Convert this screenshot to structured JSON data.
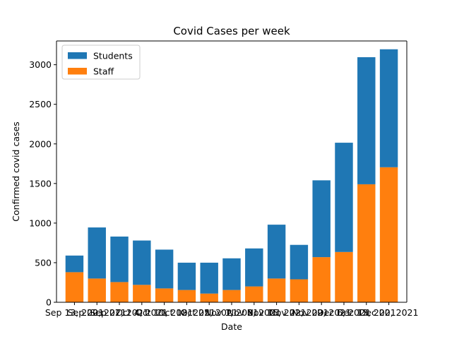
{
  "chart_data": {
    "type": "bar",
    "stacked": true,
    "title": "Covid Cases per week",
    "xlabel": "Date",
    "ylabel": "Confirmed covid cases",
    "ylim": [
      0,
      3300
    ],
    "yticks": [
      0,
      500,
      1000,
      1500,
      2000,
      2500,
      3000
    ],
    "categories": [
      "Sep 13, 2021",
      "Sep 20, 2021",
      "Sep 27, 2021",
      "Oct 4, 2021",
      "Oct 11, 2021",
      "Oct 18, 2021",
      "Oct 25, 2021",
      "Nov 1, 2021",
      "Nov 8, 2021",
      "Nov 15, 2021",
      "Nov 22, 2021",
      "Nov 29, 2021",
      "Dec 6, 2021",
      "Dec 13, 2021",
      "Dec 20, 2021"
    ],
    "series": [
      {
        "name": "Staff",
        "color": "#ff7f0e",
        "values": [
          380,
          300,
          255,
          220,
          175,
          155,
          110,
          155,
          200,
          300,
          290,
          570,
          635,
          1490,
          1705
        ]
      },
      {
        "name": "Students",
        "color": "#1f77b4",
        "values": [
          210,
          645,
          575,
          560,
          490,
          345,
          390,
          400,
          480,
          680,
          435,
          970,
          1380,
          1605,
          1490
        ]
      }
    ],
    "legend": {
      "position": "top-left",
      "order": [
        "Students",
        "Staff"
      ]
    },
    "grid": false
  }
}
